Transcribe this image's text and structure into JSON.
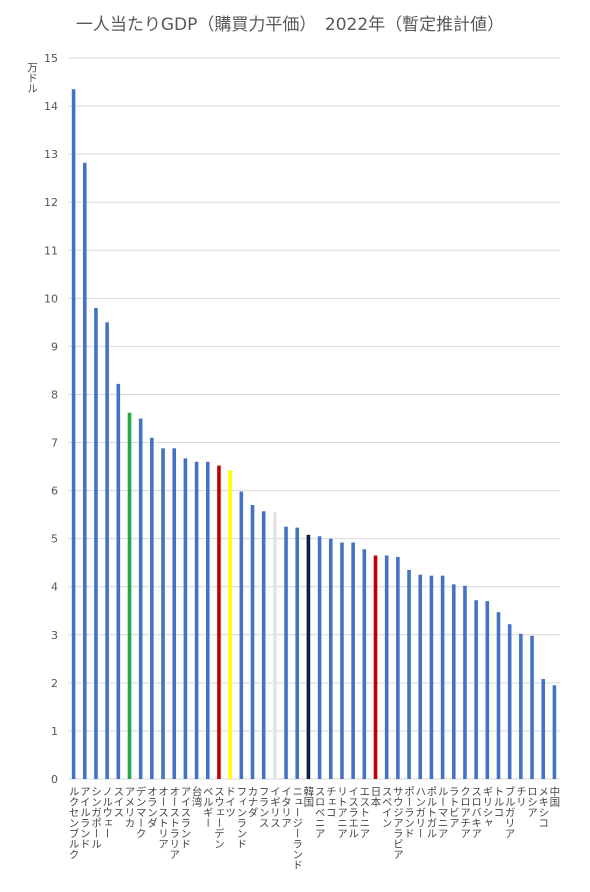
{
  "chart_data": {
    "type": "bar",
    "title": "一人当たりGDP（購買力平価）　2022年（暫定推計値）",
    "y_label": "万ドル",
    "categories": [
      "ルクセンブルク",
      "アイルランド",
      "シンガポール",
      "ノルウェー",
      "スイス",
      "アメリカ",
      "デンマーク",
      "オランダ",
      "オーストリア",
      "オーストラリア",
      "アイスランド",
      "台湾",
      "ベルギー",
      "スウェーデン",
      "ドイツ",
      "フィンランド",
      "カナダ",
      "フランス",
      "イギリス",
      "イタリア",
      "ニュージーランド",
      "韓国",
      "スロベニア",
      "チェコ",
      "リトアニア",
      "イスラエル",
      "エストニア",
      "日本",
      "スペイン",
      "サウジアラビア",
      "ポーランド",
      "ハンガリー",
      "ポルトガル",
      "ルーマニア",
      "ラトビア",
      "クロアチア",
      "スロバキア",
      "ギリシャ",
      "トルコ",
      "ブルガリア",
      "チリ",
      "ロシア",
      "メキシコ",
      "中国"
    ],
    "values": [
      14.35,
      12.82,
      9.8,
      9.5,
      8.22,
      7.62,
      7.5,
      7.1,
      6.88,
      6.88,
      6.67,
      6.6,
      6.6,
      6.52,
      6.42,
      5.98,
      5.7,
      5.57,
      5.55,
      5.25,
      5.23,
      5.08,
      5.05,
      5.0,
      4.92,
      4.92,
      4.78,
      4.65,
      4.65,
      4.62,
      4.35,
      4.25,
      4.23,
      4.23,
      4.05,
      4.02,
      3.72,
      3.7,
      3.47,
      3.22,
      3.02,
      2.98,
      2.08,
      1.95
    ],
    "colors": [
      "#4472c4",
      "#4472c4",
      "#4472c4",
      "#4472c4",
      "#4472c4",
      "#20a84a",
      "#4472c4",
      "#4472c4",
      "#4472c4",
      "#4472c4",
      "#4472c4",
      "#4472c4",
      "#4472c4",
      "#c00000",
      "#ffff00",
      "#4472c4",
      "#4472c4",
      "#4472c4",
      "#e4e4e4",
      "#4472c4",
      "#4472c4",
      "#0b1f44",
      "#4472c4",
      "#4472c4",
      "#4472c4",
      "#4472c4",
      "#4472c4",
      "#c00000",
      "#4472c4",
      "#4472c4",
      "#4472c4",
      "#4472c4",
      "#4472c4",
      "#4472c4",
      "#4472c4",
      "#4472c4",
      "#4472c4",
      "#4472c4",
      "#4472c4",
      "#4472c4",
      "#4472c4",
      "#4472c4",
      "#4472c4",
      "#4472c4"
    ],
    "ylim": [
      0,
      15
    ],
    "yticks": [
      0,
      1,
      2,
      3,
      4,
      5,
      6,
      7,
      8,
      9,
      10,
      11,
      12,
      13,
      14,
      15
    ],
    "grid": true
  }
}
